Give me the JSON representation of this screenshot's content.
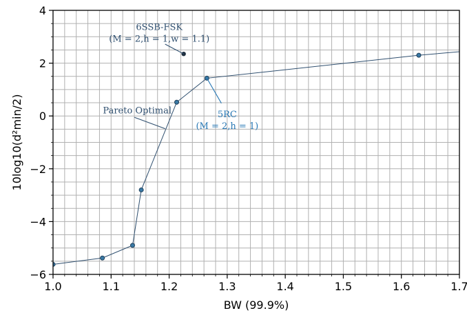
{
  "chart_data": {
    "type": "scatter",
    "xlabel": "BW (99.9%)",
    "ylabel": "10log10(d²min/2)",
    "xlim": [
      1.0,
      1.7
    ],
    "ylim": [
      -6,
      4
    ],
    "x_major_ticks": [
      1.0,
      1.1,
      1.2,
      1.3,
      1.4,
      1.5,
      1.6,
      1.7
    ],
    "x_tick_labels": [
      "1.0",
      "1.1",
      "1.2",
      "1.3",
      "1.4",
      "1.5",
      "1.6",
      "1.7"
    ],
    "y_major_ticks": [
      -6,
      -4,
      -2,
      0,
      2,
      4
    ],
    "y_tick_labels": [
      "−6",
      "−4",
      "−2",
      "0",
      "2",
      "4"
    ],
    "x_minor_step": 0.02,
    "y_minor_step": 0.5,
    "grid": true,
    "series": [
      {
        "points": [
          [
            1.0,
            -5.62
          ],
          [
            1.085,
            -5.38
          ],
          [
            1.137,
            -4.9
          ],
          [
            1.152,
            -2.8
          ],
          [
            1.213,
            0.52
          ],
          [
            1.265,
            1.43
          ],
          [
            1.63,
            2.3
          ],
          [
            1.72,
            2.47
          ]
        ],
        "marker_points": [
          [
            1.0,
            -5.62
          ],
          [
            1.085,
            -5.38
          ],
          [
            1.137,
            -4.9
          ],
          [
            1.152,
            -2.8
          ],
          [
            1.213,
            0.52
          ],
          [
            1.265,
            1.43
          ],
          [
            1.63,
            2.3
          ]
        ],
        "color": "#2f4f6f",
        "marker_color": "#3a7aa6"
      }
    ],
    "extra_points": [
      {
        "x": 1.225,
        "y": 2.35,
        "color": "#1f2f3f"
      }
    ],
    "annotations": [
      {
        "lines": [
          "6SSB-FSK",
          "(M = 2,h = 1,w = 1.1)"
        ],
        "text_x": 1.183,
        "text_y": 3.25,
        "line_from": [
          1.193,
          2.72
        ],
        "line_to": [
          1.225,
          2.35
        ],
        "color": "#2f4f6f"
      },
      {
        "lines": [
          "Pareto Optimal"
        ],
        "text_x": 1.145,
        "text_y": 0.1,
        "line_from": [
          1.14,
          -0.05
        ],
        "line_to": [
          1.193,
          -0.48
        ],
        "color": "#2f4f6f"
      },
      {
        "lines": [
          "5RC",
          "(M = 2,h = 1)"
        ],
        "text_x": 1.3,
        "text_y": -0.05,
        "line_from": [
          1.265,
          1.43
        ],
        "line_to": [
          1.29,
          0.48
        ],
        "color": "#2878b5"
      }
    ]
  }
}
